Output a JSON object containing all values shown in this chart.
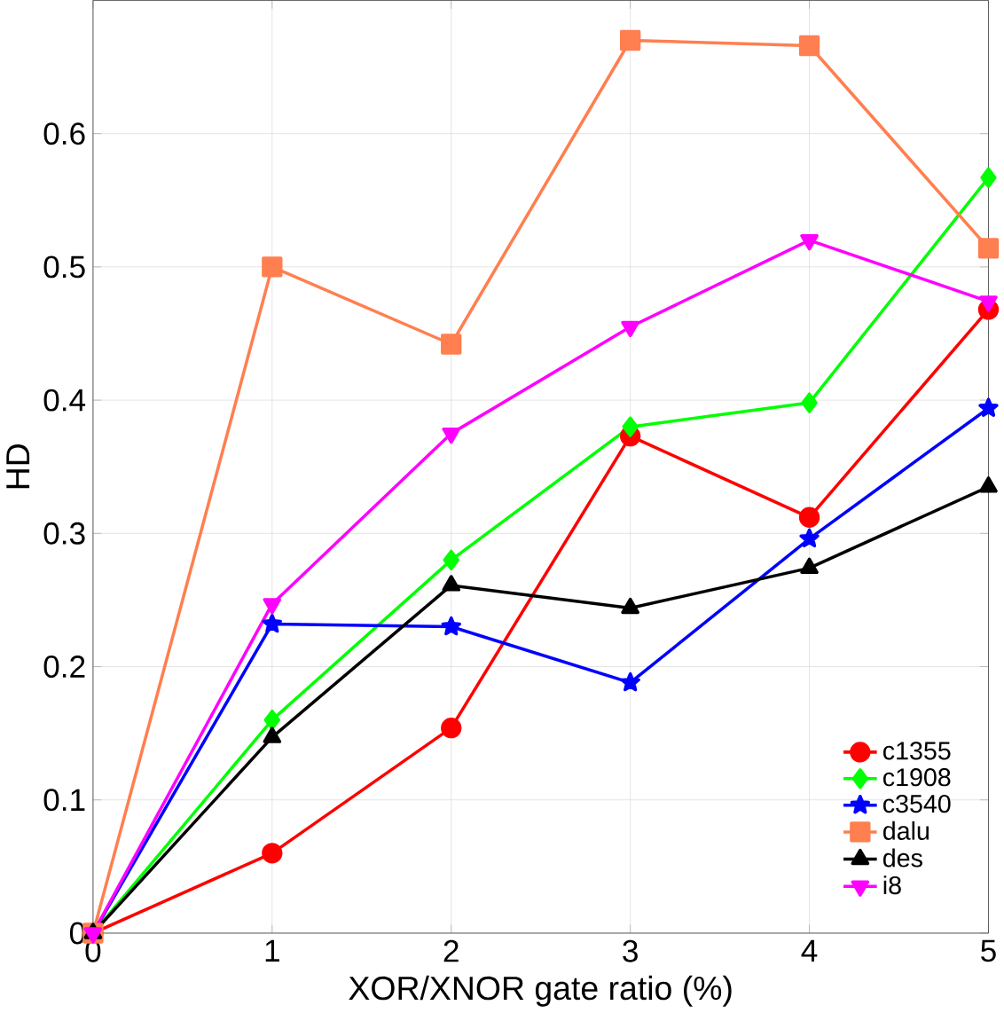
{
  "chart_data": {
    "type": "line",
    "xlabel": "XOR/XNOR gate ratio (%)",
    "ylabel": "HD",
    "x": [
      0,
      1,
      2,
      3,
      4,
      5
    ],
    "series": [
      {
        "name": "c1355",
        "color": "#ff0000",
        "marker": "circle",
        "values": [
          0,
          0.06,
          0.154,
          0.373,
          0.312,
          0.468
        ]
      },
      {
        "name": "c1908",
        "color": "#00ff00",
        "marker": "diamond",
        "values": [
          0,
          0.16,
          0.28,
          0.38,
          0.398,
          0.567
        ]
      },
      {
        "name": "c3540",
        "color": "#0000ff",
        "marker": "star",
        "values": [
          0,
          0.232,
          0.23,
          0.188,
          0.296,
          0.394
        ]
      },
      {
        "name": "dalu",
        "color": "#ff7f50",
        "marker": "square",
        "values": [
          0,
          0.5,
          0.442,
          0.67,
          0.666,
          0.514
        ]
      },
      {
        "name": "des",
        "color": "#000000",
        "marker": "triangle",
        "values": [
          0,
          0.147,
          0.261,
          0.244,
          0.274,
          0.335
        ]
      },
      {
        "name": "i8",
        "color": "#ff00ff",
        "marker": "triangle down",
        "values": [
          0,
          0.247,
          0.375,
          0.455,
          0.52,
          0.474
        ]
      }
    ],
    "xlim": [
      0,
      5
    ],
    "ylim": [
      0,
      0.7
    ],
    "xticks": [
      0,
      1,
      2,
      3,
      4,
      5
    ],
    "yticks": [
      0,
      0.1,
      0.2,
      0.3,
      0.4,
      0.5,
      0.6
    ],
    "grid": true,
    "legend": "bottom right"
  }
}
